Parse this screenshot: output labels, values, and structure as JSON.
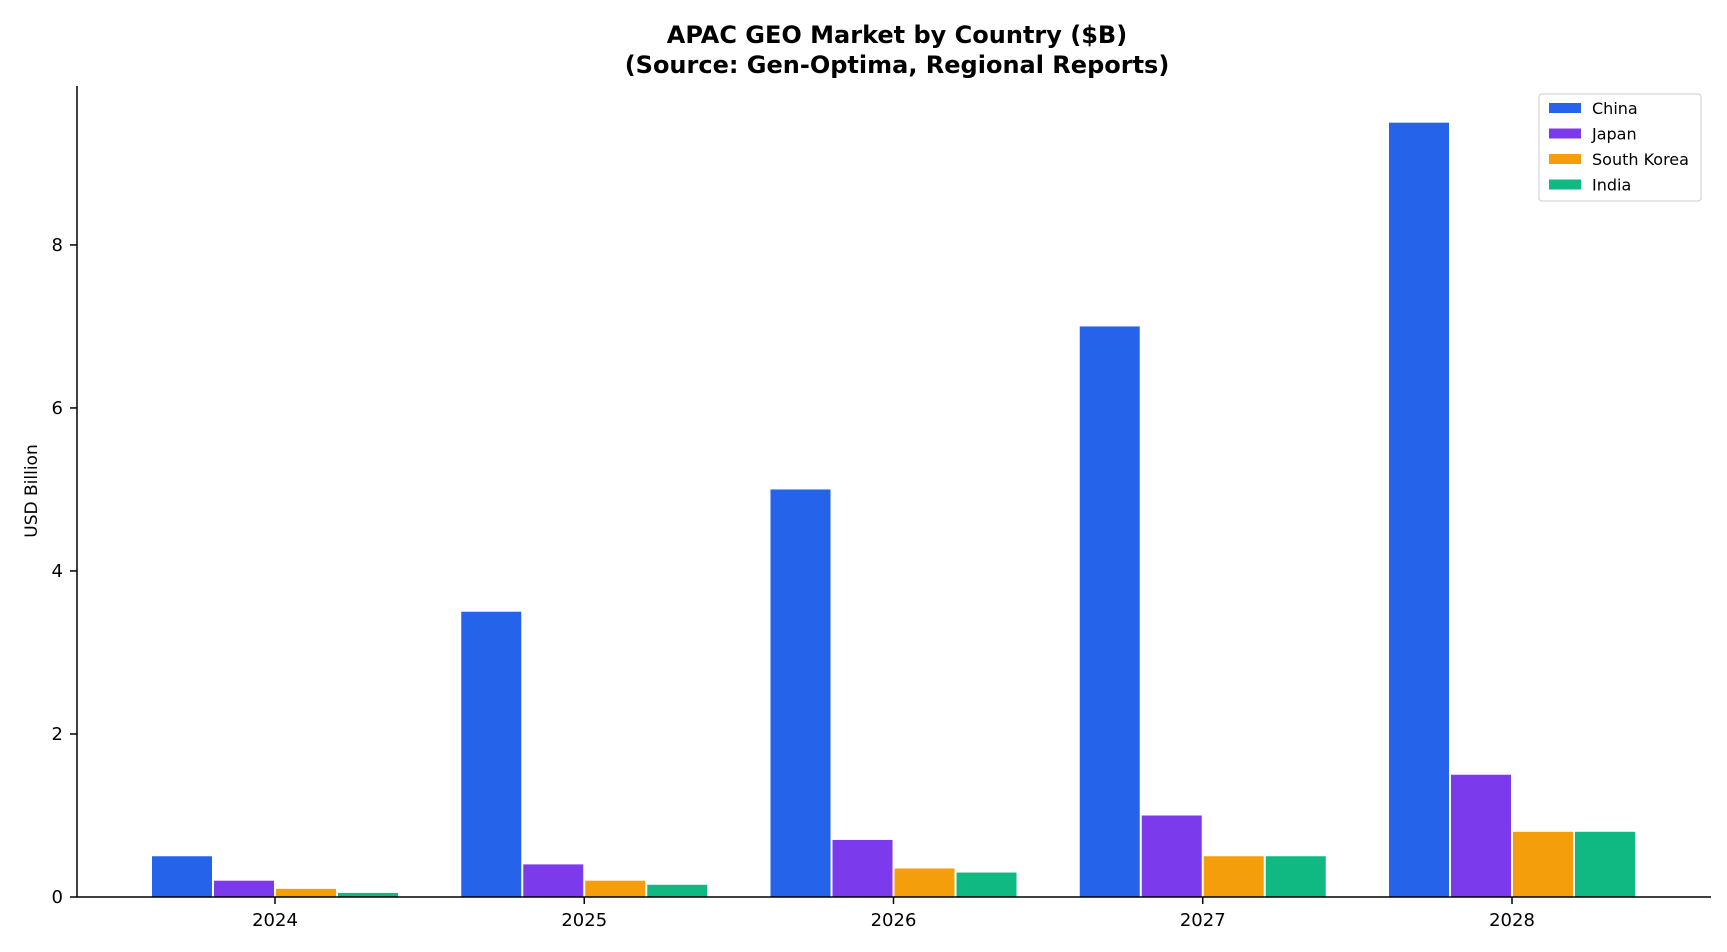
{
  "chart_data": {
    "type": "bar",
    "title": "APAC GEO Market by Country ($B)",
    "subtitle": "(Source: Gen-Optima, Regional Reports)",
    "xlabel": "",
    "ylabel": "USD Billion",
    "categories": [
      "2024",
      "2025",
      "2026",
      "2027",
      "2028"
    ],
    "ylim": [
      0,
      9.95
    ],
    "yticks": [
      0,
      2,
      4,
      6,
      8
    ],
    "grid": false,
    "legend_position": "top-right",
    "series": [
      {
        "name": "China",
        "color": "#2563eb",
        "values": [
          0.5,
          3.5,
          5.0,
          7.0,
          9.5
        ]
      },
      {
        "name": "Japan",
        "color": "#7c3aed",
        "values": [
          0.2,
          0.4,
          0.7,
          1.0,
          1.5
        ]
      },
      {
        "name": "South Korea",
        "color": "#f59e0b",
        "values": [
          0.1,
          0.2,
          0.35,
          0.5,
          0.8
        ]
      },
      {
        "name": "India",
        "color": "#10b981",
        "values": [
          0.05,
          0.15,
          0.3,
          0.5,
          0.8
        ]
      }
    ]
  }
}
